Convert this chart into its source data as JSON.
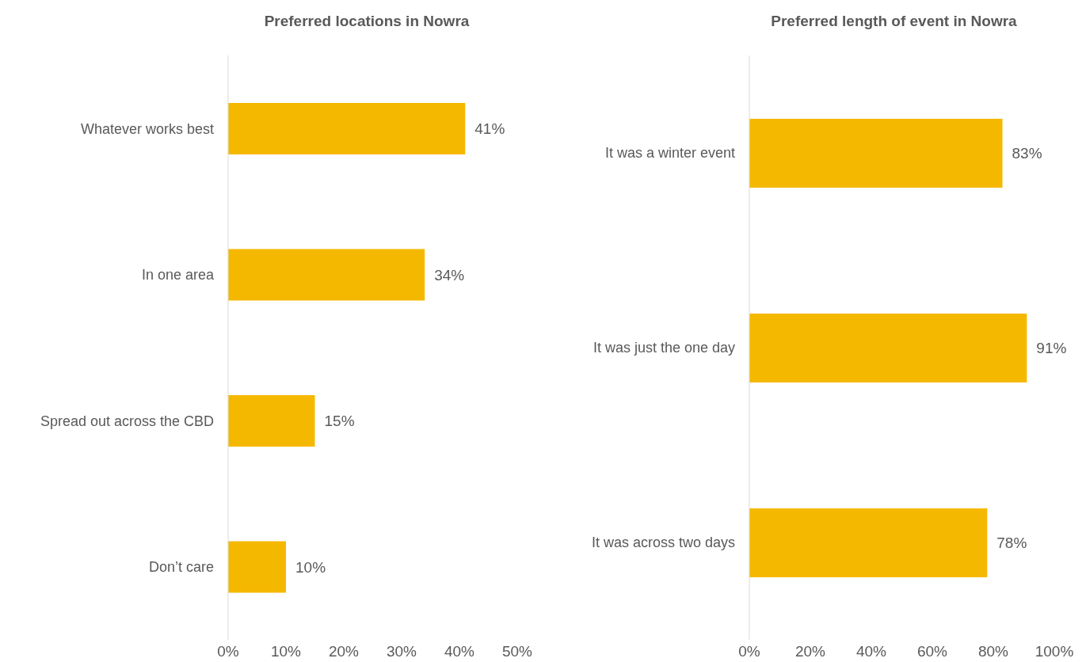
{
  "chart_data": [
    {
      "type": "bar",
      "orientation": "horizontal",
      "title": "Preferred locations in Nowra",
      "categories": [
        "Whatever works best",
        "In one area",
        "Spread out across the CBD",
        "Don’t care"
      ],
      "values": [
        41,
        34,
        15,
        10
      ],
      "value_labels": [
        "41%",
        "34%",
        "15%",
        "10%"
      ],
      "color": "#f5b800",
      "xlim": [
        0,
        50
      ],
      "xticks": [
        {
          "value": 0,
          "label": "0%"
        },
        {
          "value": 10,
          "label": "10%"
        },
        {
          "value": 20,
          "label": "20%"
        },
        {
          "value": 30,
          "label": "30%"
        },
        {
          "value": 40,
          "label": "40%"
        },
        {
          "value": 50,
          "label": "50%"
        }
      ]
    },
    {
      "type": "bar",
      "orientation": "horizontal",
      "title": "Preferred length of event in Nowra",
      "categories": [
        "It was a winter event",
        "It was just the one day",
        "It was across two days"
      ],
      "values": [
        83,
        91,
        78
      ],
      "value_labels": [
        "83%",
        "91%",
        "78%"
      ],
      "color": "#f5b800",
      "xlim": [
        0,
        100
      ],
      "xticks": [
        {
          "value": 0,
          "label": "0%"
        },
        {
          "value": 20,
          "label": "20%"
        },
        {
          "value": 40,
          "label": "40%"
        },
        {
          "value": 60,
          "label": "60%"
        },
        {
          "value": 80,
          "label": "80%"
        },
        {
          "value": 100,
          "label": "100%"
        }
      ]
    }
  ]
}
